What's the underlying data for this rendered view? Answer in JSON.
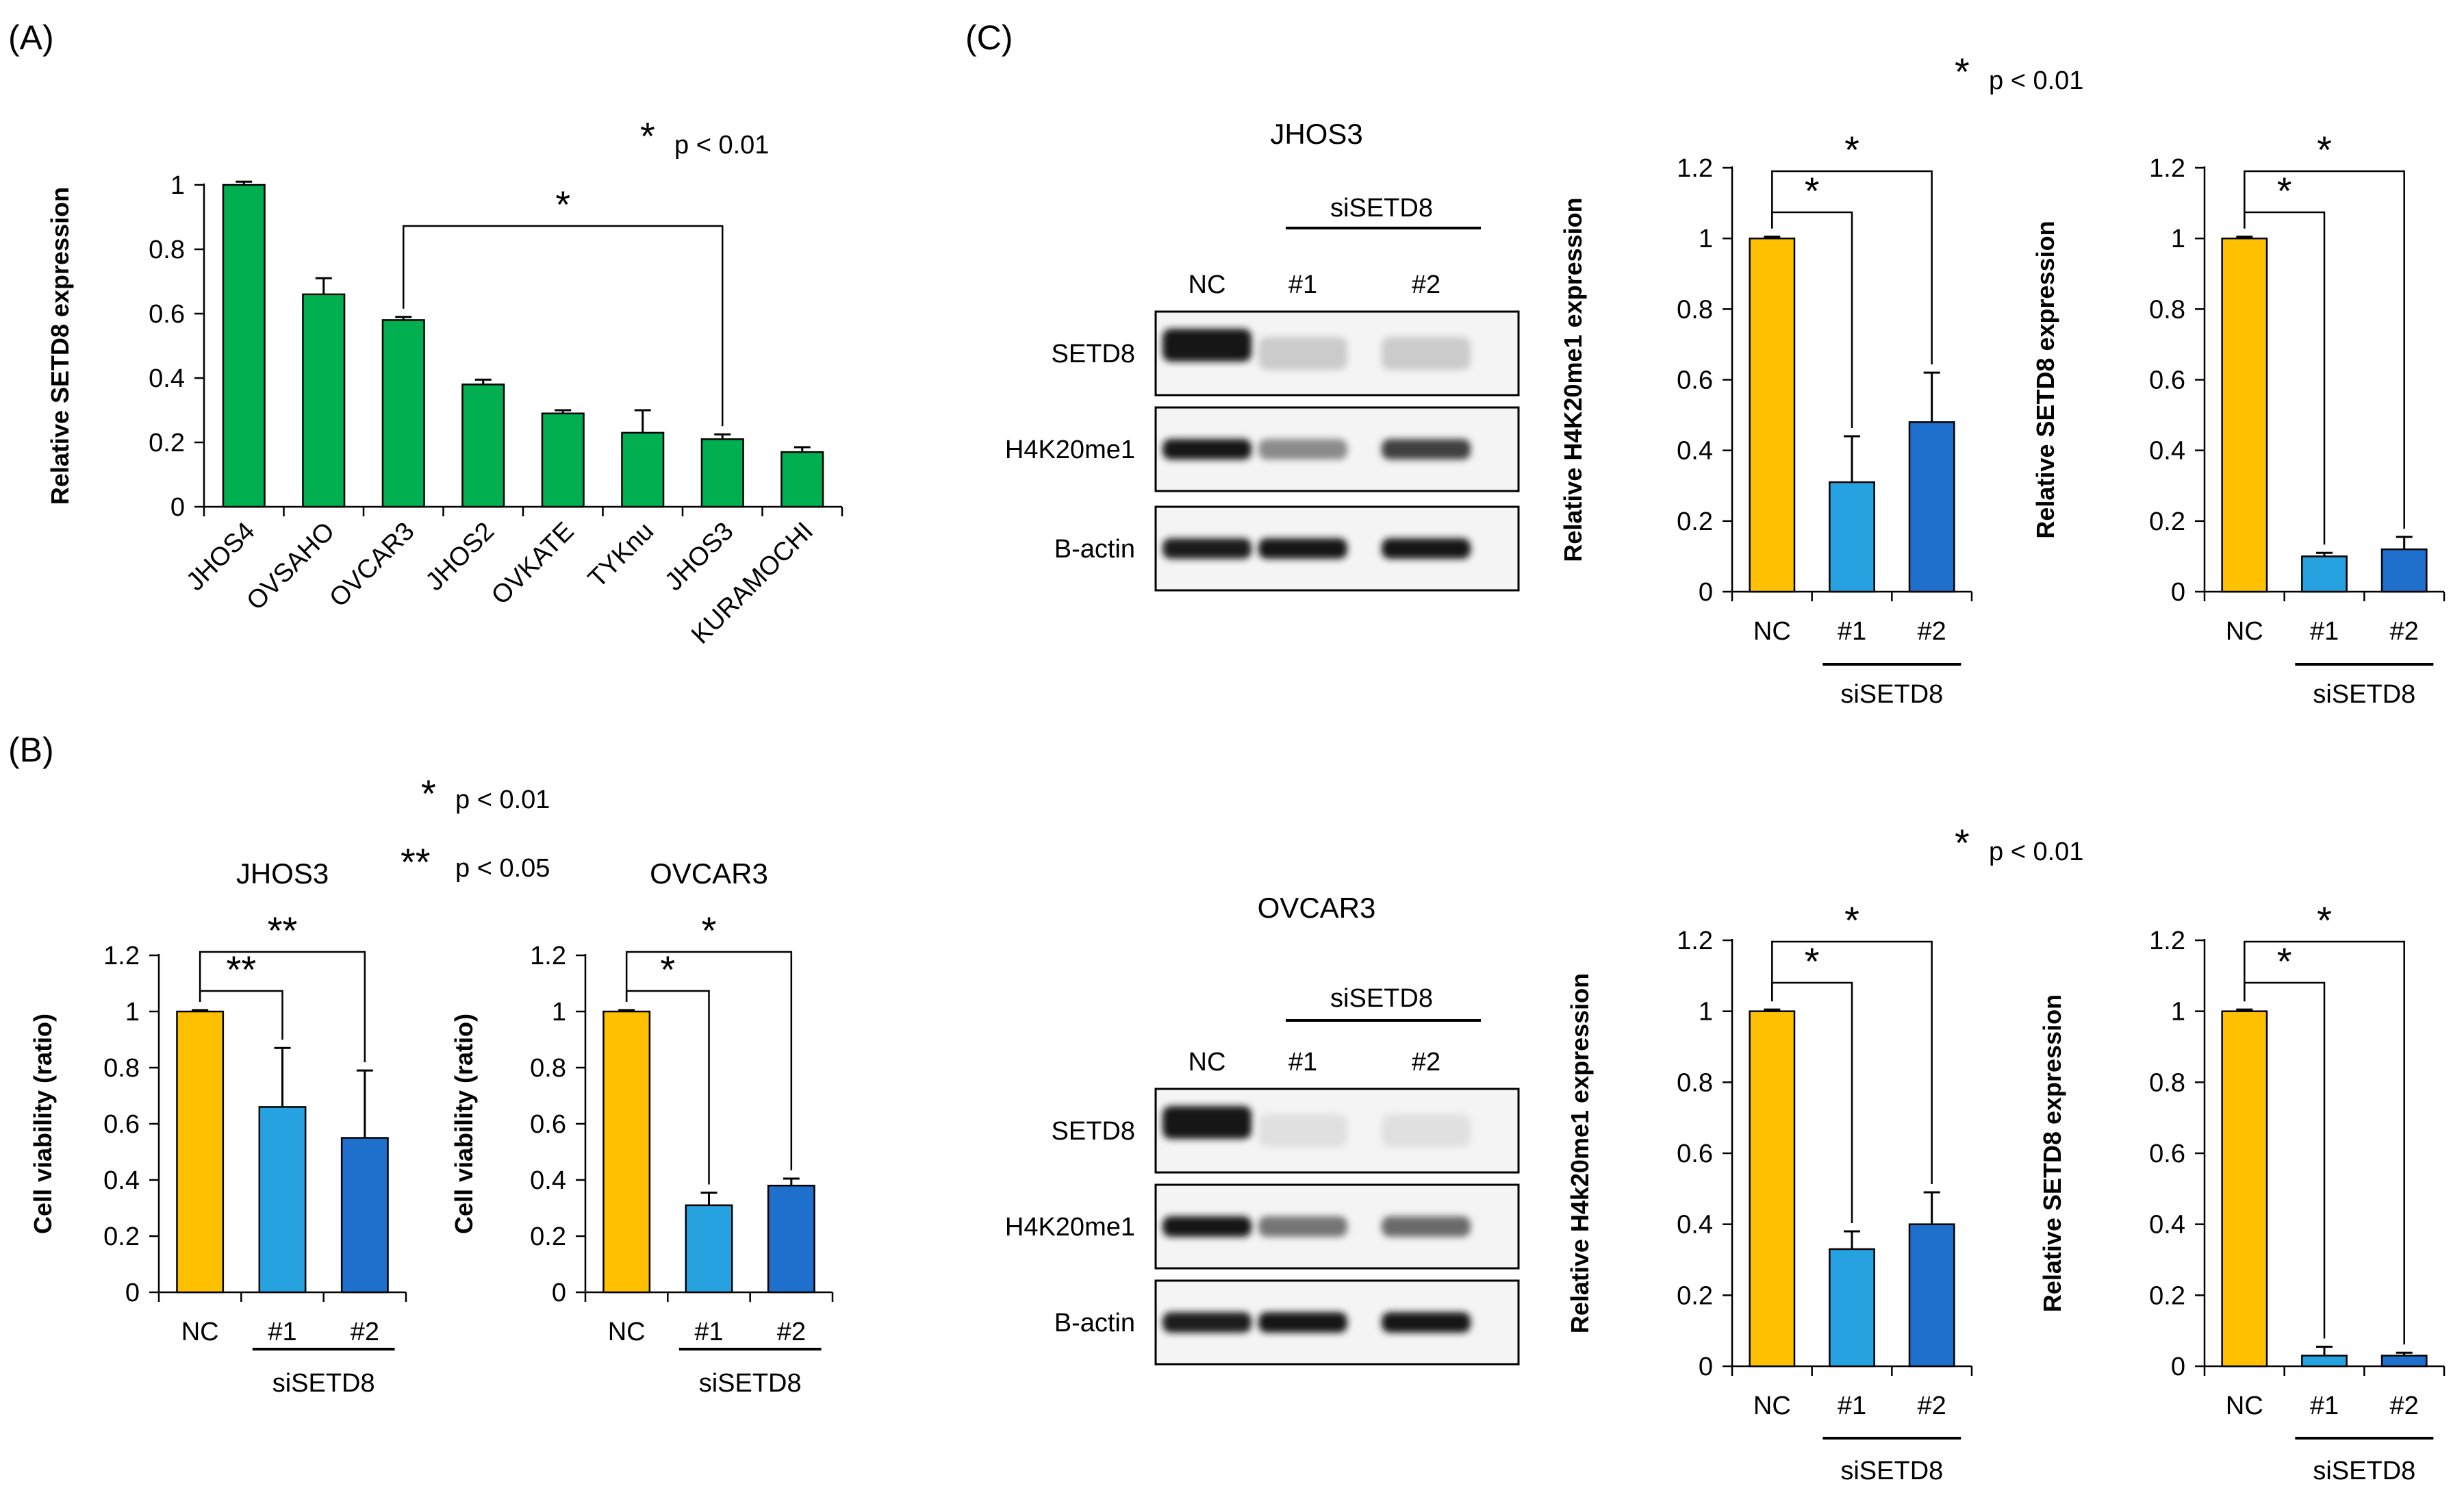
{
  "panels": {
    "A": {
      "label": "(A)",
      "sig": [
        {
          "star": "*",
          "text": "p < 0.01"
        }
      ]
    },
    "B": {
      "label": "(B)",
      "sig": [
        {
          "star": "*",
          "text": "p < 0.01"
        },
        {
          "star": "**",
          "text": "p < 0.05"
        }
      ]
    },
    "C": {
      "label": "(C)",
      "sig_top": {
        "star": "*",
        "text": "p < 0.01"
      },
      "sig_bottom": {
        "star": "*",
        "text": "p < 0.01"
      }
    }
  },
  "blots": [
    {
      "title": "JHOS3",
      "group_label": "siSETD8",
      "lanes": [
        "NC",
        "#1",
        "#2"
      ],
      "rows": [
        {
          "label": "SETD8",
          "intensity": [
            1.0,
            0.15,
            0.15
          ]
        },
        {
          "label": "H4K20me1",
          "intensity": [
            1.0,
            0.45,
            0.8
          ]
        },
        {
          "label": "B-actin",
          "intensity": [
            0.95,
            1.0,
            1.0
          ]
        }
      ]
    },
    {
      "title": "OVCAR3",
      "group_label": "siSETD8",
      "lanes": [
        "NC",
        "#1",
        "#2"
      ],
      "rows": [
        {
          "label": "SETD8",
          "intensity": [
            1.0,
            0.05,
            0.05
          ]
        },
        {
          "label": "H4K20me1",
          "intensity": [
            1.0,
            0.55,
            0.6
          ]
        },
        {
          "label": "B-actin",
          "intensity": [
            0.95,
            1.0,
            1.0
          ]
        }
      ]
    }
  ],
  "chart_data": [
    {
      "id": "A",
      "type": "bar",
      "title": "",
      "xlabel": "",
      "ylabel": "Relative SETD8 expression",
      "ylim": [
        0,
        1
      ],
      "yticks": [
        "0",
        "0.2",
        "0.4",
        "0.6",
        "0.8",
        "1"
      ],
      "categories": [
        "JHOS4",
        "OVSAHO",
        "OVCAR3",
        "JHOS2",
        "OVKATE",
        "TYKnu",
        "JHOS3",
        "KURAMOCHI"
      ],
      "values": [
        1.0,
        0.66,
        0.58,
        0.38,
        0.29,
        0.23,
        0.21,
        0.17
      ],
      "errors": [
        0.01,
        0.05,
        0.01,
        0.015,
        0.01,
        0.07,
        0.015,
        0.015
      ],
      "colors": [
        "#00b050",
        "#00b050",
        "#00b050",
        "#00b050",
        "#00b050",
        "#00b050",
        "#00b050",
        "#00b050"
      ],
      "group_label": "",
      "brackets": [
        {
          "from": 2,
          "to": 6,
          "label": "*"
        }
      ]
    },
    {
      "id": "B1",
      "type": "bar",
      "title": "JHOS3",
      "xlabel": "",
      "ylabel": "Cell viability (ratio)",
      "ylim": [
        0,
        1.2
      ],
      "yticks": [
        "0",
        "0.2",
        "0.4",
        "0.6",
        "0.8",
        "1",
        "1.2"
      ],
      "categories": [
        "NC",
        "#1",
        "#2"
      ],
      "values": [
        1.0,
        0.66,
        0.55
      ],
      "errors": [
        0.005,
        0.21,
        0.24
      ],
      "colors": [
        "#ffc000",
        "#27a2e0",
        "#1f6fcc"
      ],
      "group_label": "siSETD8",
      "brackets": [
        {
          "from": 0,
          "to": 1,
          "label": "**"
        },
        {
          "from": 0,
          "to": 2,
          "label": "**"
        }
      ]
    },
    {
      "id": "B2",
      "type": "bar",
      "title": "OVCAR3",
      "xlabel": "",
      "ylabel": "Cell viability (ratio)",
      "ylim": [
        0,
        1.2
      ],
      "yticks": [
        "0",
        "0.2",
        "0.4",
        "0.6",
        "0.8",
        "1",
        "1.2"
      ],
      "categories": [
        "NC",
        "#1",
        "#2"
      ],
      "values": [
        1.0,
        0.31,
        0.38
      ],
      "errors": [
        0.005,
        0.045,
        0.025
      ],
      "colors": [
        "#ffc000",
        "#27a2e0",
        "#1f6fcc"
      ],
      "group_label": "siSETD8",
      "brackets": [
        {
          "from": 0,
          "to": 1,
          "label": "*"
        },
        {
          "from": 0,
          "to": 2,
          "label": "*"
        }
      ]
    },
    {
      "id": "C1",
      "type": "bar",
      "title": "",
      "xlabel": "",
      "ylabel": "Relative H4K20me1 expression",
      "ylim": [
        0,
        1.2
      ],
      "yticks": [
        "0",
        "0.2",
        "0.4",
        "0.6",
        "0.8",
        "1",
        "1.2"
      ],
      "categories": [
        "NC",
        "#1",
        "#2"
      ],
      "values": [
        1.0,
        0.31,
        0.48
      ],
      "errors": [
        0.005,
        0.13,
        0.14
      ],
      "colors": [
        "#ffc000",
        "#27a2e0",
        "#1f6fcc"
      ],
      "group_label": "siSETD8",
      "brackets": [
        {
          "from": 0,
          "to": 1,
          "label": "*"
        },
        {
          "from": 0,
          "to": 2,
          "label": "*"
        }
      ]
    },
    {
      "id": "C2",
      "type": "bar",
      "title": "",
      "xlabel": "",
      "ylabel": "Relative SETD8 expression",
      "ylim": [
        0,
        1.2
      ],
      "yticks": [
        "0",
        "0.2",
        "0.4",
        "0.6",
        "0.8",
        "1",
        "1.2"
      ],
      "categories": [
        "NC",
        "#1",
        "#2"
      ],
      "values": [
        1.0,
        0.1,
        0.12
      ],
      "errors": [
        0.005,
        0.01,
        0.035
      ],
      "colors": [
        "#ffc000",
        "#27a2e0",
        "#1f6fcc"
      ],
      "group_label": "siSETD8",
      "brackets": [
        {
          "from": 0,
          "to": 1,
          "label": "*"
        },
        {
          "from": 0,
          "to": 2,
          "label": "*"
        }
      ]
    },
    {
      "id": "C3",
      "type": "bar",
      "title": "",
      "xlabel": "",
      "ylabel": "Relative H4k20me1 expression",
      "ylim": [
        0,
        1.2
      ],
      "yticks": [
        "0",
        "0.2",
        "0.4",
        "0.6",
        "0.8",
        "1",
        "1.2"
      ],
      "categories": [
        "NC",
        "#1",
        "#2"
      ],
      "values": [
        1.0,
        0.33,
        0.4
      ],
      "errors": [
        0.005,
        0.05,
        0.09
      ],
      "colors": [
        "#ffc000",
        "#27a2e0",
        "#1f6fcc"
      ],
      "group_label": "siSETD8",
      "brackets": [
        {
          "from": 0,
          "to": 1,
          "label": "*"
        },
        {
          "from": 0,
          "to": 2,
          "label": "*"
        }
      ]
    },
    {
      "id": "C4",
      "type": "bar",
      "title": "",
      "xlabel": "",
      "ylabel": "Relative SETD8 expression",
      "ylim": [
        0,
        1.2
      ],
      "yticks": [
        "0",
        "0.2",
        "0.4",
        "0.6",
        "0.8",
        "1",
        "1.2"
      ],
      "categories": [
        "NC",
        "#1",
        "#2"
      ],
      "values": [
        1.0,
        0.03,
        0.03
      ],
      "errors": [
        0.005,
        0.025,
        0.008
      ],
      "colors": [
        "#ffc000",
        "#27a2e0",
        "#1f6fcc"
      ],
      "group_label": "siSETD8",
      "brackets": [
        {
          "from": 0,
          "to": 1,
          "label": "*"
        },
        {
          "from": 0,
          "to": 2,
          "label": "*"
        }
      ]
    }
  ]
}
